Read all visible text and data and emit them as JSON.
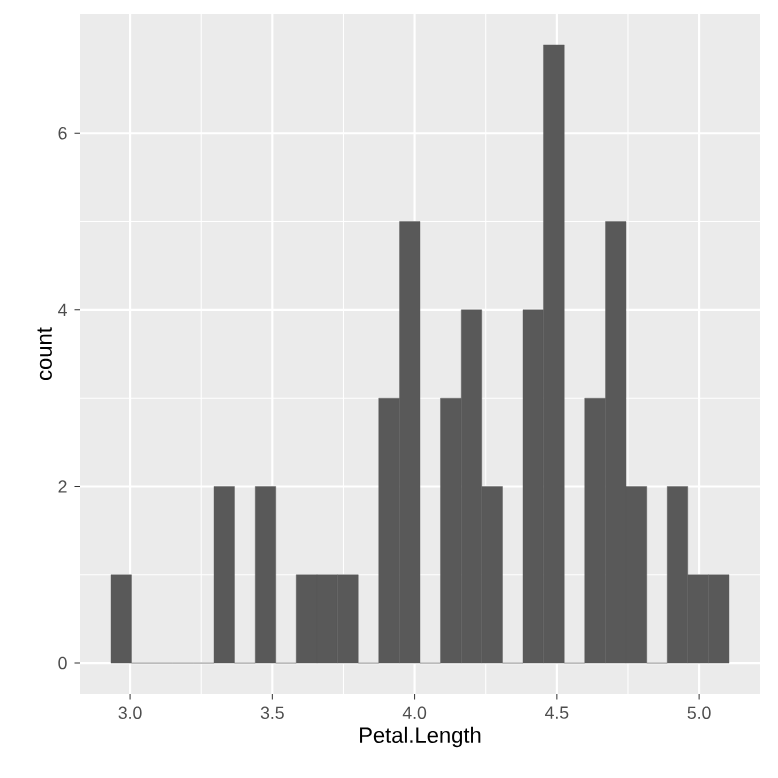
{
  "chart_data": {
    "type": "histogram",
    "xlabel": "Petal.Length",
    "ylabel": "count",
    "color": "#595959",
    "bins": [
      2.933,
      3.005,
      3.078,
      3.15,
      3.222,
      3.295,
      3.367,
      3.44,
      3.512,
      3.584,
      3.657,
      3.729,
      3.802,
      3.874,
      3.947,
      4.019,
      4.091,
      4.164,
      4.236,
      4.309,
      4.381,
      4.453,
      4.526,
      4.598,
      4.671,
      4.743,
      4.816,
      4.888,
      4.96,
      5.033,
      5.105
    ],
    "values": [
      1,
      0,
      0,
      0,
      0,
      2,
      0,
      2,
      0,
      1,
      1,
      1,
      0,
      3,
      5,
      0,
      3,
      4,
      2,
      0,
      4,
      7,
      0,
      3,
      5,
      2,
      0,
      2,
      1,
      1
    ],
    "xlim": [
      2.824,
      5.214
    ],
    "ylim": [
      -0.35,
      7.35
    ],
    "xticks": [
      {
        "value": 3,
        "label": "3.0"
      },
      {
        "value": 3.5,
        "label": "3.5"
      },
      {
        "value": 4,
        "label": "4.0"
      },
      {
        "value": 4.5,
        "label": "4.5"
      },
      {
        "value": 5,
        "label": "5.0"
      }
    ],
    "yticks": [
      0,
      2,
      4,
      6
    ],
    "grid": true
  }
}
